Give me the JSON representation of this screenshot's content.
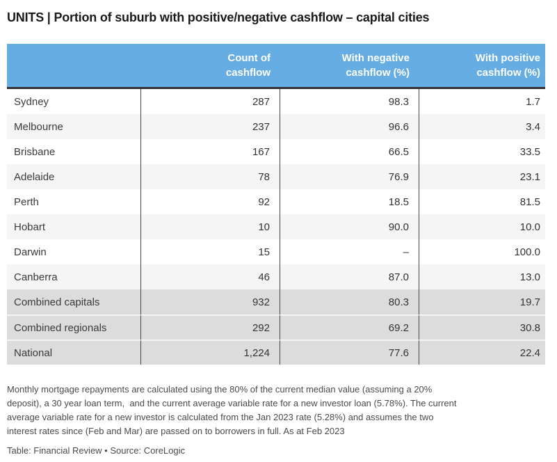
{
  "title": "UNITS | Portion of suburb with positive/negative cashflow – capital cities",
  "table": {
    "header": {
      "label_col": "",
      "count_col": "Count of\ncashflow",
      "negative_col": "With negative\ncashflow (%)",
      "positive_col": "With positive\ncashflow (%)"
    },
    "rows": [
      {
        "label": "Sydney",
        "count": "287",
        "negative": "98.3",
        "positive": "1.7",
        "summary": false
      },
      {
        "label": "Melbourne",
        "count": "237",
        "negative": "96.6",
        "positive": "3.4",
        "summary": false
      },
      {
        "label": "Brisbane",
        "count": "167",
        "negative": "66.5",
        "positive": "33.5",
        "summary": false
      },
      {
        "label": "Adelaide",
        "count": "78",
        "negative": "76.9",
        "positive": "23.1",
        "summary": false
      },
      {
        "label": "Perth",
        "count": "92",
        "negative": "18.5",
        "positive": "81.5",
        "summary": false
      },
      {
        "label": "Hobart",
        "count": "10",
        "negative": "90.0",
        "positive": "10.0",
        "summary": false
      },
      {
        "label": "Darwin",
        "count": "15",
        "negative": "–",
        "positive": "100.0",
        "summary": false
      },
      {
        "label": "Canberra",
        "count": "46",
        "negative": "87.0",
        "positive": "13.0",
        "summary": false
      },
      {
        "label": "Combined capitals",
        "count": "932",
        "negative": "80.3",
        "positive": "19.7",
        "summary": true
      },
      {
        "label": "Combined regionals",
        "count": "292",
        "negative": "69.2",
        "positive": "30.8",
        "summary": true
      },
      {
        "label": "National",
        "count": "1,224",
        "negative": "77.6",
        "positive": "22.4",
        "summary": true
      }
    ]
  },
  "footnote": "Monthly mortgage repayments are calculated using the 80% of the current median value (assuming a 20%\ndeposit), a 30 year loan term,  and the current average variable rate for a new investor loan (5.78%). The current\naverage variable rate for a new investor is calculated from the Jan 2023 rate (5.28%) and assumes the two\ninterest rates since (Feb and Mar) are passed on to borrowers in full. As at Feb 2023",
  "source": "Table: Financial Review • Source: CoreLogic",
  "colors": {
    "header_bg": "#65ADE3",
    "header_text": "#ffffff",
    "row_alt_bg": "#f5f5f5",
    "summary_row_bg": "#dcdcdc",
    "header_divider": "#333333",
    "column_line": "#454545",
    "body_text": "#333333",
    "note_text": "#4a4a4a"
  },
  "chart_data": {
    "type": "table",
    "title": "UNITS | Portion of suburb with positive/negative cashflow – capital cities",
    "columns": [
      "",
      "Count of cashflow",
      "With negative cashflow (%)",
      "With positive cashflow (%)"
    ],
    "rows": [
      [
        "Sydney",
        287,
        98.3,
        1.7
      ],
      [
        "Melbourne",
        237,
        96.6,
        3.4
      ],
      [
        "Brisbane",
        167,
        66.5,
        33.5
      ],
      [
        "Adelaide",
        78,
        76.9,
        23.1
      ],
      [
        "Perth",
        92,
        18.5,
        81.5
      ],
      [
        "Hobart",
        10,
        90.0,
        10.0
      ],
      [
        "Darwin",
        15,
        "–",
        100.0
      ],
      [
        "Canberra",
        46,
        87.0,
        13.0
      ],
      [
        "Combined capitals",
        932,
        80.3,
        19.7
      ],
      [
        "Combined regionals",
        292,
        69.2,
        30.8
      ],
      [
        "National",
        1224,
        77.6,
        22.4
      ]
    ],
    "notes": "Monthly mortgage repayments are calculated using the 80% of the current median value (assuming a 20% deposit), a 30 year loan term, and the current average variable rate for a new investor loan (5.78%). The current average variable rate for a new investor is calculated from the Jan 2023 rate (5.28%) and assumes the two interest rates since (Feb and Mar) are passed on to borrowers in full. As at Feb 2023",
    "source": "Table: Financial Review • Source: CoreLogic"
  }
}
